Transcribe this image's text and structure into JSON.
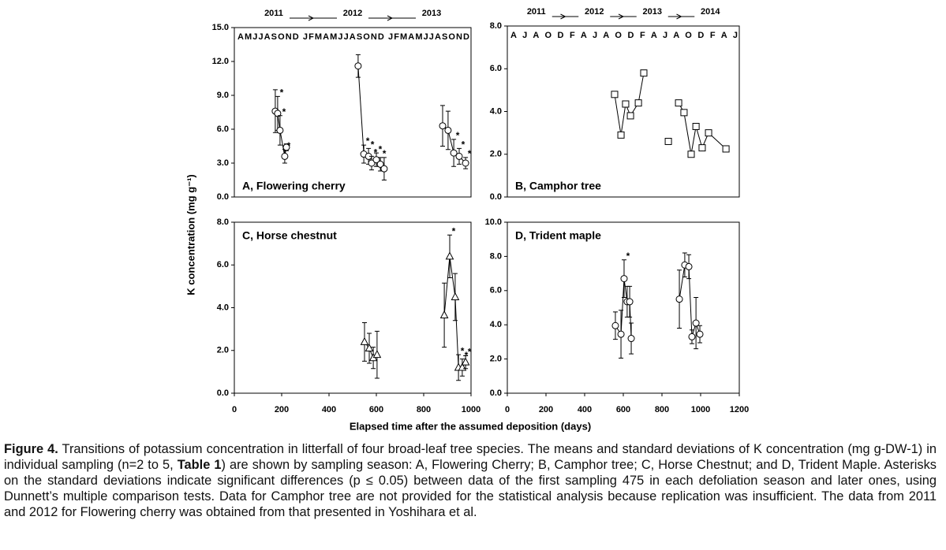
{
  "figure": {
    "y_label": "K concentration (mg g⁻¹)",
    "x_label": "Elapsed time after the assumed deposition (days)"
  },
  "caption": {
    "label": "Figure 4.",
    "text1": "Transitions of potassium concentration in litterfall of four broad-leaf tree species. The means and standard deviations of K concentration (mg g-DW-1) in individual sampling (n=2 to 5,",
    "table_ref": "Table 1",
    "text2": ") are shown by sampling season: A, Flowering Cherry; B, Camphor tree; C, Horse Chestnut; and D, Trident Maple. Asterisks on the standard deviations indicate significant differences (p ≤ 0.05) between data of the first sampling 475 in each defoliation season and later ones, using Dunnett’s multiple comparison tests. Data for Camphor tree are not provided for the statistical analysis because replication was insufficient. The data from 2011 and 2012 for Flowering cherry was obtained from that presented in Yoshihara et al."
  },
  "chart_data": [
    {
      "type": "scatter",
      "title": "A, Flowering cherry",
      "marker": "circle",
      "asterisk": "*",
      "years": [
        "2011",
        "2012",
        "2013"
      ],
      "months": "AMJJASOND JFMAMJJASOND JFMAMJJASOND",
      "xlim": [
        0,
        1000
      ],
      "ylim": [
        0,
        15
      ],
      "yticks": [
        {
          "value": 0,
          "label": "0.0"
        },
        {
          "value": 3,
          "label": "3.0"
        },
        {
          "value": 6,
          "label": "6.0"
        },
        {
          "value": 9,
          "label": "9.0"
        },
        {
          "value": 12,
          "label": "12.0"
        },
        {
          "value": 15,
          "label": "15.0"
        }
      ],
      "series": [
        {
          "x": [
            173,
            183,
            193,
            213,
            220
          ],
          "values": [
            7.6,
            7.4,
            5.9,
            3.6,
            4.4
          ],
          "errors": [
            1.9,
            1.5,
            1.3,
            0.6,
            0.3
          ],
          "significant": [
            false,
            true,
            true,
            true,
            false
          ]
        },
        {
          "x": [
            523,
            547,
            567,
            580,
            600,
            617,
            633
          ],
          "values": [
            11.6,
            3.8,
            3.6,
            3.0,
            3.3,
            2.9,
            2.5
          ],
          "errors": [
            1.0,
            0.8,
            0.7,
            0.6,
            0.6,
            0.6,
            1.0
          ],
          "significant": [
            false,
            true,
            true,
            true,
            true,
            true,
            false
          ]
        },
        {
          "x": [
            880,
            903,
            927,
            950,
            977
          ],
          "values": [
            6.3,
            5.9,
            3.9,
            3.6,
            3.0
          ],
          "errors": [
            1.8,
            1.7,
            1.2,
            0.7,
            0.5
          ],
          "significant": [
            false,
            false,
            true,
            true,
            true
          ]
        }
      ]
    },
    {
      "type": "scatter",
      "title": "B, Camphor tree",
      "marker": "square",
      "years": [
        "2011",
        "2012",
        "2013",
        "2014"
      ],
      "months": "A J A O D F A J A O D F A J A O D F A J",
      "xlim": [
        0,
        1200
      ],
      "ylim": [
        0,
        8
      ],
      "yticks": [
        {
          "value": 0,
          "label": "0.0"
        },
        {
          "value": 2,
          "label": "2.0"
        },
        {
          "value": 4,
          "label": "4.0"
        },
        {
          "value": 6,
          "label": "6.0"
        },
        {
          "value": 8,
          "label": "8.0"
        }
      ],
      "series": [
        {
          "x": [
            555,
            588,
            612,
            637,
            678,
            706
          ],
          "values": [
            4.8,
            2.9,
            4.35,
            3.8,
            4.4,
            5.8
          ]
        },
        {
          "x": [
            833
          ],
          "values": [
            2.6
          ]
        },
        {
          "x": [
            886,
            914,
            951,
            976,
            1008,
            1041,
            1131
          ],
          "values": [
            4.4,
            3.95,
            2.0,
            3.3,
            2.3,
            3.0,
            2.25
          ]
        }
      ]
    },
    {
      "type": "scatter",
      "title": "C, Horse chestnut",
      "marker": "triangle",
      "asterisk": "*",
      "xlim": [
        0,
        1000
      ],
      "ylim": [
        0,
        8
      ],
      "xticks": [
        0,
        200,
        400,
        600,
        800,
        1000
      ],
      "yticks": [
        {
          "value": 0,
          "label": "0.0"
        },
        {
          "value": 2,
          "label": "2.0"
        },
        {
          "value": 4,
          "label": "4.0"
        },
        {
          "value": 6,
          "label": "6.0"
        },
        {
          "value": 8,
          "label": "8.0"
        }
      ],
      "series": [
        {
          "x": [
            550,
            570,
            587,
            603
          ],
          "values": [
            2.4,
            2.1,
            1.65,
            1.8
          ],
          "errors": [
            0.9,
            0.7,
            0.5,
            1.1
          ],
          "significant": [
            false,
            false,
            false,
            false
          ]
        },
        {
          "x": [
            887,
            910,
            933,
            947,
            963,
            977
          ],
          "values": [
            3.65,
            6.4,
            4.5,
            1.2,
            1.2,
            1.45
          ],
          "errors": [
            1.5,
            1.0,
            1.1,
            0.6,
            0.4,
            0.3
          ],
          "significant": [
            false,
            true,
            false,
            true,
            true,
            true
          ]
        }
      ]
    },
    {
      "type": "scatter",
      "title": "D, Trident maple",
      "marker": "circle",
      "asterisk": "*",
      "xlim": [
        0,
        1200
      ],
      "ylim": [
        0,
        10
      ],
      "xticks": [
        0,
        200,
        400,
        600,
        800,
        1000,
        1200
      ],
      "yticks": [
        {
          "value": 0,
          "label": "0.0"
        },
        {
          "value": 2,
          "label": "2.0"
        },
        {
          "value": 4,
          "label": "4.0"
        },
        {
          "value": 6,
          "label": "6.0"
        },
        {
          "value": 8,
          "label": "8.0"
        },
        {
          "value": 10,
          "label": "10.0"
        }
      ],
      "series": [
        {
          "x": [
            559,
            588,
            604,
            620,
            633,
            641
          ],
          "values": [
            3.95,
            3.45,
            6.7,
            5.35,
            5.35,
            3.2
          ],
          "errors": [
            0.8,
            1.4,
            1.1,
            0.9,
            0.9,
            0.9
          ],
          "significant": [
            false,
            false,
            true,
            false,
            false,
            false
          ]
        },
        {
          "x": [
            890,
            918,
            939,
            955,
            976,
            996
          ],
          "values": [
            5.5,
            7.5,
            7.4,
            3.3,
            4.1,
            3.45
          ],
          "errors": [
            1.7,
            0.7,
            0.7,
            0.4,
            1.5,
            0.5
          ],
          "significant": [
            false,
            false,
            false,
            true,
            false,
            false
          ]
        }
      ]
    }
  ]
}
